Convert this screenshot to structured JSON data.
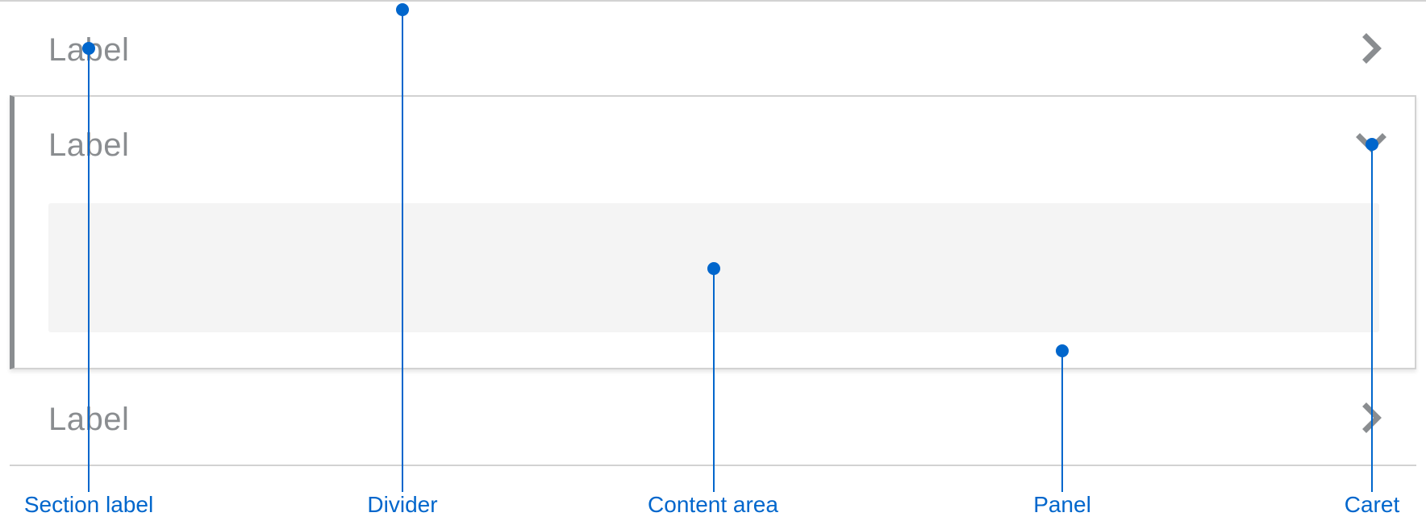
{
  "accordion": {
    "items": [
      {
        "label": "Label",
        "caret": "chevron-right-icon",
        "expanded": false
      },
      {
        "label": "Label",
        "caret": "chevron-down-icon",
        "expanded": true
      },
      {
        "label": "Label",
        "caret": "chevron-right-icon",
        "expanded": false
      }
    ]
  },
  "callouts": [
    {
      "id": "section-label",
      "label": "Section label"
    },
    {
      "id": "divider",
      "label": "Divider"
    },
    {
      "id": "content-area",
      "label": "Content area"
    },
    {
      "id": "panel",
      "label": "Panel"
    },
    {
      "id": "caret",
      "label": "Caret"
    }
  ],
  "colors": {
    "callout_blue": "#0066cc",
    "label_gray": "#8a8d90",
    "divider_gray": "#d2d2d2",
    "content_bg": "#f4f4f4",
    "panel_border": "#8a8d90"
  }
}
